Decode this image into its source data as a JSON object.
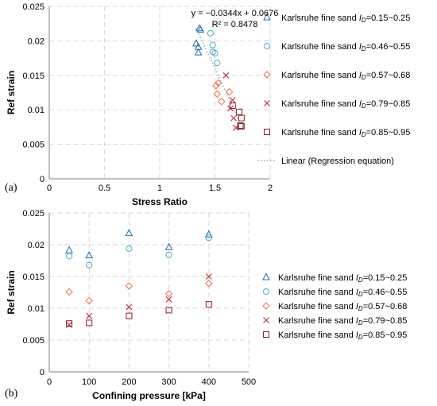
{
  "chart_data": [
    {
      "panel_label": "(a)",
      "type": "scatter",
      "xlabel": "Stress Ratio",
      "ylabel": "Ref strain",
      "xlim": [
        0,
        2
      ],
      "ylim": [
        0,
        0.025
      ],
      "x_ticks": [
        "0",
        "0.5",
        "1",
        "1.5",
        "2"
      ],
      "y_ticks": [
        "0",
        "0.005",
        "0.01",
        "0.015",
        "0.02",
        "0.025"
      ],
      "grid": "dashed",
      "legend_position": "right",
      "annotation": {
        "equation": "y = −0.0344x + 0.0676",
        "r2": "R² = 0.8478"
      },
      "regression": {
        "slope": -0.0344,
        "intercept": 0.0676,
        "x_range": [
          1.33,
          1.74
        ],
        "color": "#8ca9c8"
      },
      "series": [
        {
          "legend_prefix": "Karlsruhe fine sand ",
          "legend_var": "I",
          "legend_sub": "D",
          "legend_suffix": "=0.15~0.25",
          "marker": "triangle",
          "color": "#1f6fa4",
          "points": [
            [
              1.33,
              0.0196
            ],
            [
              1.35,
              0.0183
            ],
            [
              1.35,
              0.0191
            ],
            [
              1.36,
              0.0218
            ],
            [
              1.37,
              0.0216
            ]
          ]
        },
        {
          "legend_prefix": "Karlsruhe fine sand ",
          "legend_var": "I",
          "legend_sub": "D",
          "legend_suffix": "=0.46~0.55",
          "marker": "circle",
          "color": "#4bacc6",
          "points": [
            [
              1.46,
              0.0211
            ],
            [
              1.48,
              0.0194
            ],
            [
              1.48,
              0.0184
            ],
            [
              1.5,
              0.0182
            ],
            [
              1.52,
              0.0168
            ]
          ]
        },
        {
          "legend_prefix": "Karlsruhe fine sand ",
          "legend_var": "I",
          "legend_sub": "D",
          "legend_suffix": "=0.57~0.68",
          "marker": "diamond",
          "color": "#e8734a",
          "points": [
            [
              1.51,
              0.0135
            ],
            [
              1.52,
              0.0123
            ],
            [
              1.53,
              0.0139
            ],
            [
              1.56,
              0.0112
            ],
            [
              1.63,
              0.0126
            ]
          ]
        },
        {
          "legend_prefix": "Karlsruhe fine sand ",
          "legend_var": "I",
          "legend_sub": "D",
          "legend_suffix": "=0.79~0.85",
          "marker": "x",
          "color": "#c0344d",
          "points": [
            [
              1.6,
              0.015
            ],
            [
              1.64,
              0.0102
            ],
            [
              1.66,
              0.0114
            ],
            [
              1.67,
              0.0088
            ],
            [
              1.69,
              0.0074
            ]
          ]
        },
        {
          "legend_prefix": "Karlsruhe fine sand ",
          "legend_var": "I",
          "legend_sub": "D",
          "legend_suffix": "=0.85~0.95",
          "marker": "square",
          "color": "#8b1a2b",
          "points": [
            [
              1.66,
              0.0106
            ],
            [
              1.72,
              0.0097
            ],
            [
              1.73,
              0.0077
            ],
            [
              1.74,
              0.0076
            ],
            [
              1.74,
              0.0088
            ]
          ]
        }
      ],
      "regression_legend": "Linear (Regression equation)"
    },
    {
      "panel_label": "(b)",
      "type": "scatter",
      "xlabel": "Confining pressure [kPa]",
      "ylabel": "Ref strain",
      "xlim": [
        0,
        500
      ],
      "ylim": [
        0,
        0.025
      ],
      "x_ticks": [
        "0",
        "100",
        "200",
        "300",
        "400",
        "500"
      ],
      "y_ticks": [
        "0",
        "0.005",
        "0.01",
        "0.015",
        "0.02",
        "0.025"
      ],
      "grid": "dashed",
      "legend_position": "right",
      "series": [
        {
          "legend_prefix": "Karlsruhe fine sand ",
          "legend_var": "I",
          "legend_sub": "D",
          "legend_suffix": "=0.15~0.25",
          "marker": "triangle",
          "color": "#1f6fa4",
          "points": [
            [
              50,
              0.0191
            ],
            [
              100,
              0.0183
            ],
            [
              200,
              0.0218
            ],
            [
              300,
              0.0196
            ],
            [
              400,
              0.0216
            ]
          ]
        },
        {
          "legend_prefix": "Karlsruhe fine sand ",
          "legend_var": "I",
          "legend_sub": "D",
          "legend_suffix": "=0.46~0.55",
          "marker": "circle",
          "color": "#4bacc6",
          "points": [
            [
              50,
              0.0182
            ],
            [
              100,
              0.0168
            ],
            [
              200,
              0.0194
            ],
            [
              300,
              0.0184
            ],
            [
              400,
              0.0211
            ]
          ]
        },
        {
          "legend_prefix": "Karlsruhe fine sand ",
          "legend_var": "I",
          "legend_sub": "D",
          "legend_suffix": "=0.57~0.68",
          "marker": "diamond",
          "color": "#e8734a",
          "points": [
            [
              50,
              0.0126
            ],
            [
              100,
              0.0112
            ],
            [
              200,
              0.0135
            ],
            [
              300,
              0.0123
            ],
            [
              400,
              0.0139
            ]
          ]
        },
        {
          "legend_prefix": "Karlsruhe fine sand ",
          "legend_var": "I",
          "legend_sub": "D",
          "legend_suffix": "=0.79~0.85",
          "marker": "x",
          "color": "#c0344d",
          "points": [
            [
              50,
              0.0074
            ],
            [
              100,
              0.0088
            ],
            [
              200,
              0.0102
            ],
            [
              300,
              0.0114
            ],
            [
              400,
              0.015
            ]
          ]
        },
        {
          "legend_prefix": "Karlsruhe fine sand ",
          "legend_var": "I",
          "legend_sub": "D",
          "legend_suffix": "=0.85~0.95",
          "marker": "square",
          "color": "#8b1a2b",
          "points": [
            [
              50,
              0.0076
            ],
            [
              100,
              0.0077
            ],
            [
              200,
              0.0088
            ],
            [
              300,
              0.0097
            ],
            [
              400,
              0.0106
            ]
          ]
        }
      ]
    }
  ]
}
